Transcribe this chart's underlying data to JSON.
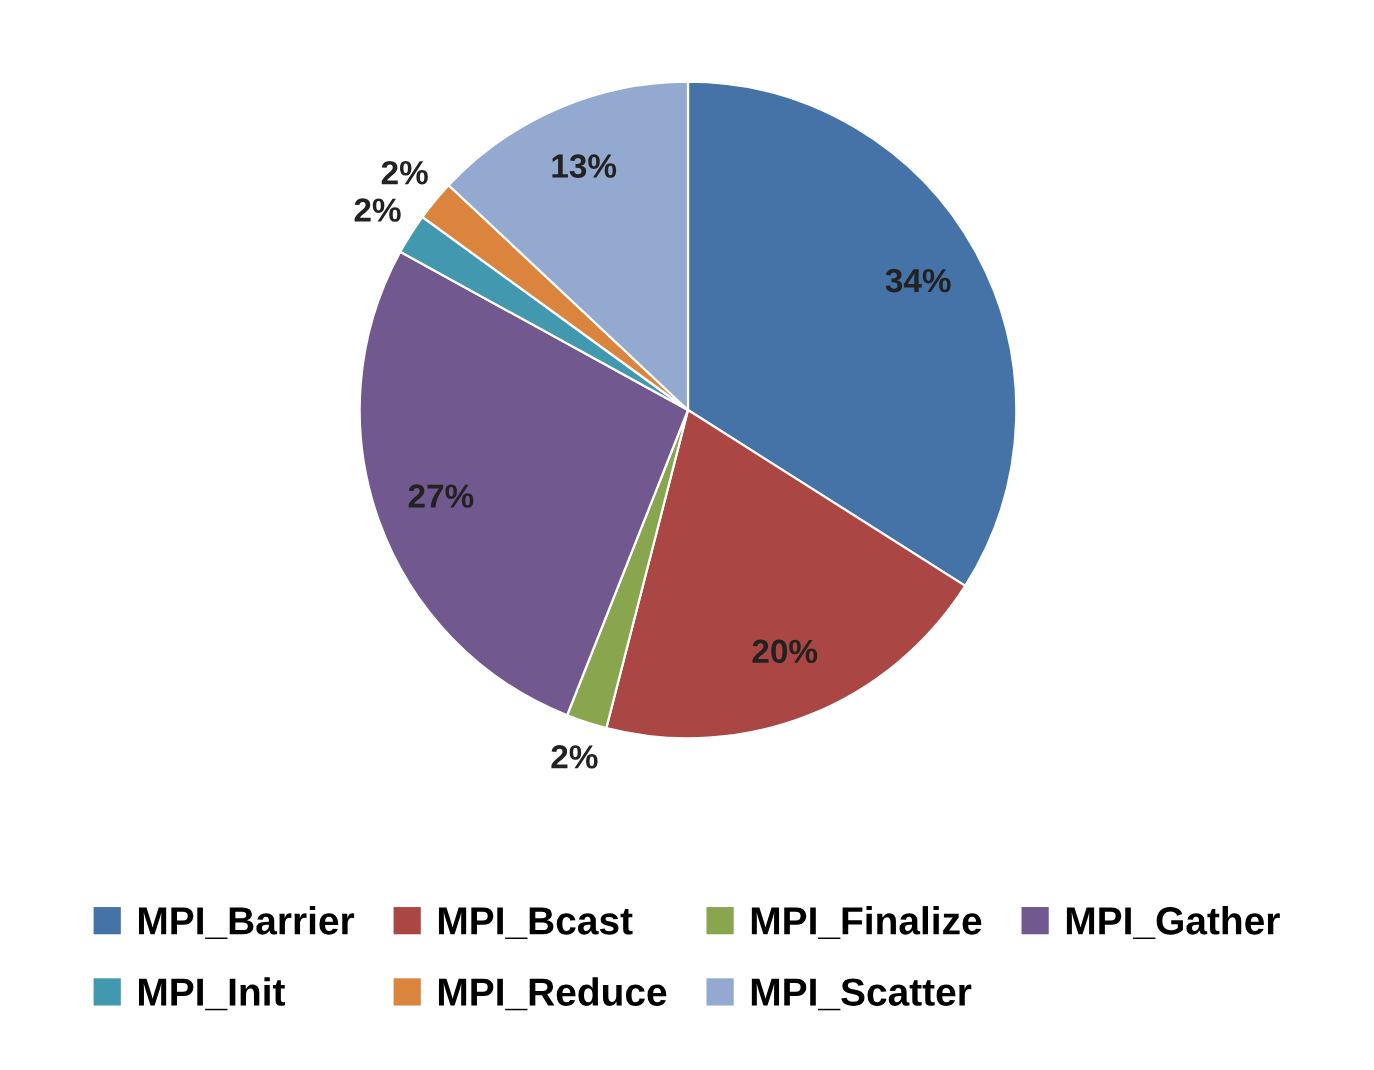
{
  "chart_data": {
    "type": "pie",
    "categories": [
      "MPI_Barrier",
      "MPI_Bcast",
      "MPI_Finalize",
      "MPI_Gather",
      "MPI_Init",
      "MPI_Reduce",
      "MPI_Scatter"
    ],
    "values": [
      34,
      20,
      2,
      27,
      2,
      2,
      13
    ],
    "colors": [
      "#4572a7",
      "#aa4643",
      "#89a54e",
      "#71588f",
      "#4198af",
      "#db843d",
      "#93a9cf"
    ],
    "value_labels": [
      "34%",
      "20%",
      "2%",
      "27%",
      "2%",
      "2%",
      "13%"
    ],
    "legend": "bottom"
  }
}
